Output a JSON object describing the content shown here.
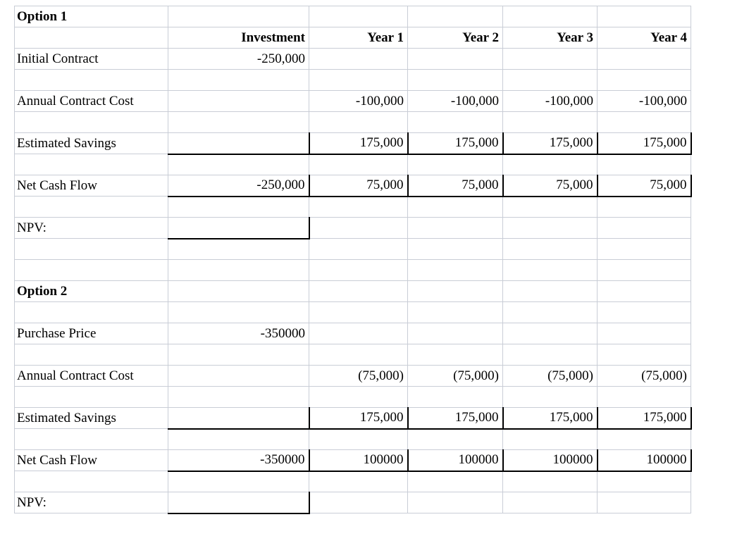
{
  "colors": {
    "grid_line": "#c9cdd6",
    "emphasis_border": "#000000",
    "text": "#000000",
    "background": "#ffffff"
  },
  "grid": {
    "column_headers": [
      "",
      "Investment",
      "Year 1",
      "Year 2",
      "Year 3",
      "Year 4"
    ],
    "rows": [
      {
        "name": "option1-title",
        "kind": "title",
        "cells": [
          "Option 1",
          "",
          "",
          "",
          "",
          ""
        ]
      },
      {
        "name": "column-headers",
        "kind": "colhead",
        "cells": [
          "",
          "Investment",
          "Year 1",
          "Year 2",
          "Year 3",
          "Year 4"
        ]
      },
      {
        "name": "initial-contract",
        "kind": "data",
        "cells": [
          "Initial Contract",
          "-250,000",
          "",
          "",
          "",
          ""
        ]
      },
      {
        "name": "blank-1",
        "kind": "blank",
        "cells": [
          "",
          "",
          "",
          "",
          "",
          ""
        ]
      },
      {
        "name": "annual-contract-cost-1",
        "kind": "data",
        "cells": [
          "Annual Contract Cost",
          "",
          "-100,000",
          "-100,000",
          "-100,000",
          "-100,000"
        ]
      },
      {
        "name": "blank-2",
        "kind": "blank",
        "cells": [
          "",
          "",
          "",
          "",
          "",
          ""
        ]
      },
      {
        "name": "estimated-savings-1",
        "kind": "boxed",
        "cells": [
          "Estimated Savings",
          "",
          "175,000",
          "175,000",
          "175,000",
          "175,000"
        ]
      },
      {
        "name": "blank-3",
        "kind": "blank",
        "cells": [
          "",
          "",
          "",
          "",
          "",
          ""
        ]
      },
      {
        "name": "net-cash-flow-1",
        "kind": "boxed",
        "cells": [
          "Net Cash Flow",
          "-250,000",
          "75,000",
          "75,000",
          "75,000",
          "75,000"
        ]
      },
      {
        "name": "blank-4",
        "kind": "blank",
        "cells": [
          "",
          "",
          "",
          "",
          "",
          ""
        ]
      },
      {
        "name": "npv-1",
        "kind": "npv",
        "cells": [
          "NPV:",
          "",
          "",
          "",
          "",
          ""
        ]
      },
      {
        "name": "blank-5",
        "kind": "blank",
        "cells": [
          "",
          "",
          "",
          "",
          "",
          ""
        ]
      },
      {
        "name": "blank-6",
        "kind": "blank",
        "cells": [
          "",
          "",
          "",
          "",
          "",
          ""
        ]
      },
      {
        "name": "option2-title",
        "kind": "title",
        "cells": [
          "Option 2",
          "",
          "",
          "",
          "",
          ""
        ]
      },
      {
        "name": "blank-7",
        "kind": "blank",
        "cells": [
          "",
          "",
          "",
          "",
          "",
          ""
        ]
      },
      {
        "name": "purchase-price",
        "kind": "data",
        "cells": [
          "Purchase Price",
          "-350000",
          "",
          "",
          "",
          ""
        ]
      },
      {
        "name": "blank-8",
        "kind": "blank",
        "cells": [
          "",
          "",
          "",
          "",
          "",
          ""
        ]
      },
      {
        "name": "annual-contract-cost-2",
        "kind": "data",
        "cells": [
          "Annual Contract Cost",
          "",
          "(75,000)",
          "(75,000)",
          "(75,000)",
          "(75,000)"
        ]
      },
      {
        "name": "blank-9",
        "kind": "blank",
        "cells": [
          "",
          "",
          "",
          "",
          "",
          ""
        ]
      },
      {
        "name": "estimated-savings-2",
        "kind": "boxed",
        "cells": [
          "Estimated Savings",
          "",
          "175,000",
          "175,000",
          "175,000",
          "175,000"
        ]
      },
      {
        "name": "blank-10",
        "kind": "blank",
        "cells": [
          "",
          "",
          "",
          "",
          "",
          ""
        ]
      },
      {
        "name": "net-cash-flow-2",
        "kind": "boxed",
        "cells": [
          "Net Cash Flow",
          "-350000",
          "100000",
          "100000",
          "100000",
          "100000"
        ]
      },
      {
        "name": "blank-11",
        "kind": "blank",
        "cells": [
          "",
          "",
          "",
          "",
          "",
          ""
        ]
      },
      {
        "name": "npv-2",
        "kind": "npv",
        "cells": [
          "NPV:",
          "",
          "",
          "",
          "",
          ""
        ]
      }
    ]
  }
}
